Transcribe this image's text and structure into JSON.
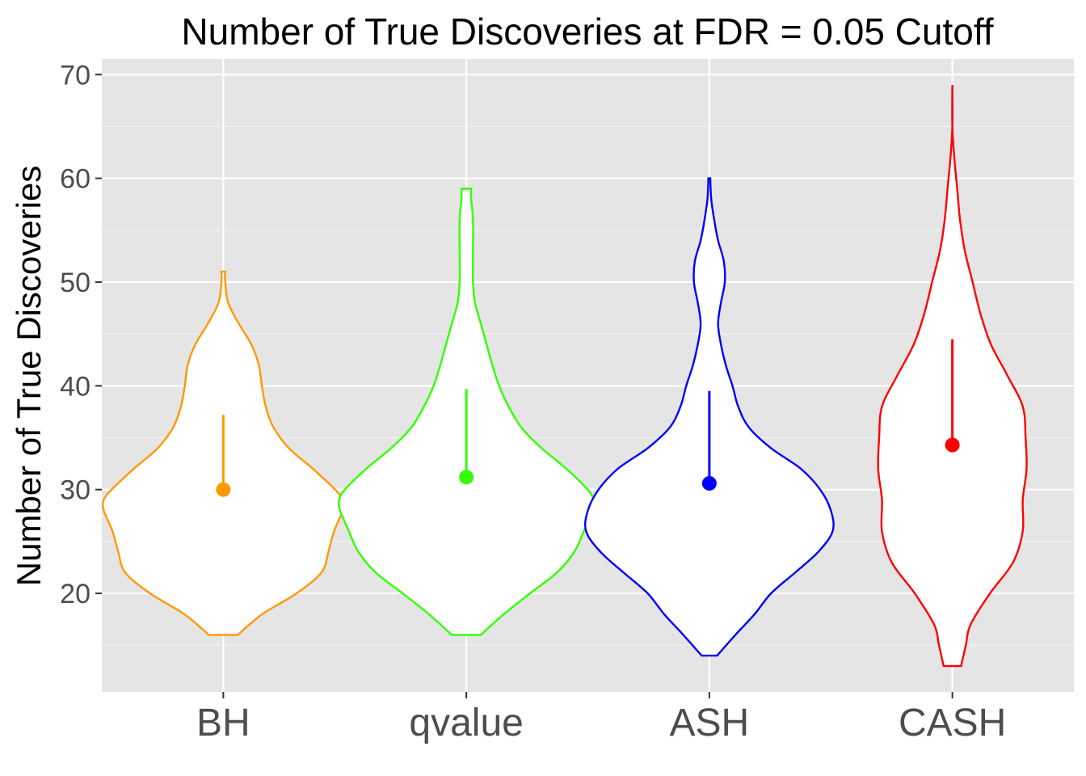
{
  "chart_data": {
    "type": "violin",
    "title": "Number of True Discoveries at FDR = 0.05 Cutoff",
    "xlabel": "",
    "ylabel": "Number of True Discoveries",
    "ylim": [
      10.5,
      71.5
    ],
    "yticks": [
      20,
      30,
      40,
      50,
      60,
      70
    ],
    "ytick_labels": [
      "20",
      "30",
      "40",
      "50",
      "60",
      "70"
    ],
    "grid": true,
    "legend": "none",
    "categories": [
      "BH",
      "qvalue",
      "ASH",
      "CASH"
    ],
    "series": [
      {
        "category": "BH",
        "color": "#ff9900",
        "min": 16,
        "max": 51,
        "mean": 30,
        "mean_plus_sd": 37.2,
        "density_halfwidth": [
          [
            16,
            0.138
          ],
          [
            18,
            0.372
          ],
          [
            20,
            0.697
          ],
          [
            22,
            0.934
          ],
          [
            24,
            1.0
          ],
          [
            26,
            1.055
          ],
          [
            28,
            1.138
          ],
          [
            29,
            1.138
          ],
          [
            30,
            1.064
          ],
          [
            32,
            0.853
          ],
          [
            34,
            0.624
          ],
          [
            36,
            0.477
          ],
          [
            38,
            0.404
          ],
          [
            40,
            0.367
          ],
          [
            42,
            0.339
          ],
          [
            44,
            0.266
          ],
          [
            46,
            0.147
          ],
          [
            48,
            0.046
          ],
          [
            50,
            0.018
          ],
          [
            51,
            0.018
          ]
        ]
      },
      {
        "category": "qvalue",
        "color": "#33ff00",
        "min": 16,
        "max": 59,
        "mean": 31.2,
        "mean_plus_sd": 39.7,
        "density_halfwidth": [
          [
            16,
            0.138
          ],
          [
            18,
            0.358
          ],
          [
            20,
            0.606
          ],
          [
            22,
            0.862
          ],
          [
            24,
            1.028
          ],
          [
            26,
            1.119
          ],
          [
            28,
            1.202
          ],
          [
            29,
            1.211
          ],
          [
            30,
            1.156
          ],
          [
            32,
            0.954
          ],
          [
            34,
            0.716
          ],
          [
            36,
            0.523
          ],
          [
            38,
            0.404
          ],
          [
            40,
            0.312
          ],
          [
            42,
            0.248
          ],
          [
            44,
            0.193
          ],
          [
            46,
            0.138
          ],
          [
            48,
            0.083
          ],
          [
            50,
            0.064
          ],
          [
            53,
            0.064
          ],
          [
            56,
            0.064
          ],
          [
            58,
            0.046
          ],
          [
            59,
            0.046
          ]
        ]
      },
      {
        "category": "ASH",
        "color": "#0000ff",
        "min": 14,
        "max": 60,
        "mean": 30.6,
        "mean_plus_sd": 39.5,
        "density_halfwidth": [
          [
            14,
            0.073
          ],
          [
            16,
            0.248
          ],
          [
            18,
            0.431
          ],
          [
            20,
            0.587
          ],
          [
            22,
            0.816
          ],
          [
            24,
            1.037
          ],
          [
            26,
            1.174
          ],
          [
            28,
            1.156
          ],
          [
            30,
            1.055
          ],
          [
            32,
            0.872
          ],
          [
            34,
            0.587
          ],
          [
            36,
            0.376
          ],
          [
            38,
            0.275
          ],
          [
            40,
            0.22
          ],
          [
            42,
            0.156
          ],
          [
            44,
            0.11
          ],
          [
            46,
            0.083
          ],
          [
            48,
            0.11
          ],
          [
            50,
            0.147
          ],
          [
            52,
            0.138
          ],
          [
            54,
            0.083
          ],
          [
            56,
            0.046
          ],
          [
            58,
            0.018
          ],
          [
            60,
            0.009
          ]
        ]
      },
      {
        "category": "CASH",
        "color": "#ff0000",
        "min": 13,
        "max": 69,
        "mean": 34.3,
        "mean_plus_sd": 44.5,
        "density_halfwidth": [
          [
            13,
            0.083
          ],
          [
            15,
            0.128
          ],
          [
            17,
            0.174
          ],
          [
            20,
            0.358
          ],
          [
            23,
            0.578
          ],
          [
            26,
            0.67
          ],
          [
            29,
            0.67
          ],
          [
            32,
            0.706
          ],
          [
            35,
            0.697
          ],
          [
            38,
            0.67
          ],
          [
            41,
            0.524
          ],
          [
            44,
            0.367
          ],
          [
            47,
            0.266
          ],
          [
            50,
            0.193
          ],
          [
            53,
            0.119
          ],
          [
            56,
            0.073
          ],
          [
            59,
            0.046
          ],
          [
            62,
            0.018
          ],
          [
            65,
            0.0
          ],
          [
            69,
            0.0
          ]
        ]
      }
    ]
  }
}
